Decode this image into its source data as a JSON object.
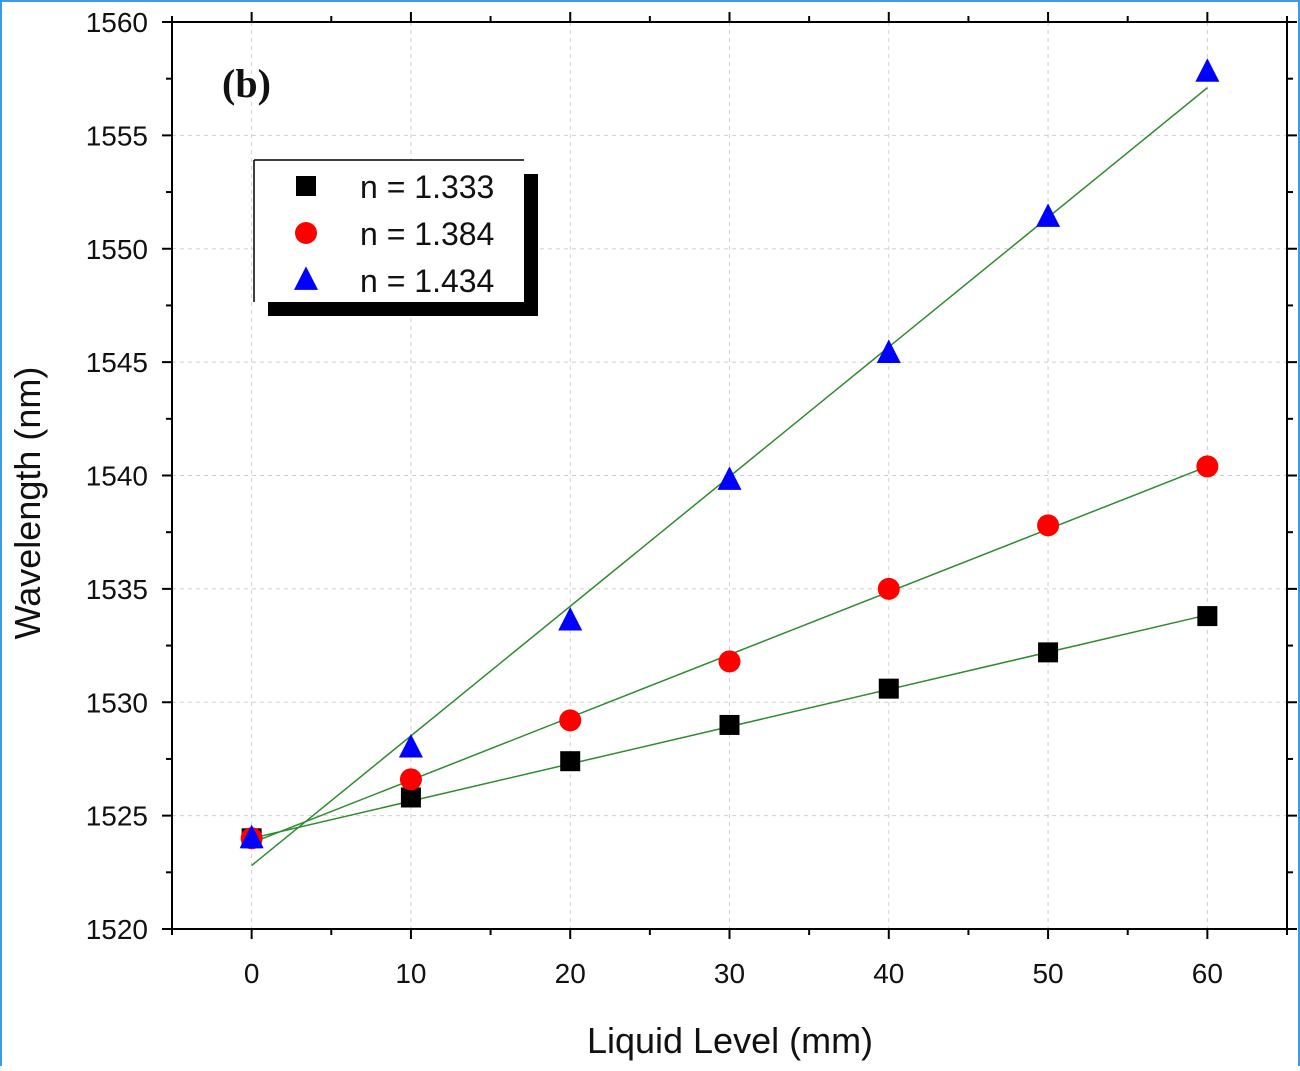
{
  "chart_data": {
    "type": "scatter",
    "panel_label": "(b)",
    "xlabel": "Liquid Level (mm)",
    "ylabel": "Wavelength (nm)",
    "xlim": [
      -5,
      65
    ],
    "ylim": [
      1520,
      1560
    ],
    "xticks": [
      0,
      10,
      20,
      30,
      40,
      50,
      60
    ],
    "yticks": [
      1520,
      1525,
      1530,
      1535,
      1540,
      1545,
      1550,
      1555,
      1560
    ],
    "grid": true,
    "legend_position": "upper-left",
    "fit_color": "#2e8b2e",
    "series": [
      {
        "name": "n = 1.333",
        "marker": "square",
        "color": "#000000",
        "x": [
          0,
          10,
          20,
          30,
          40,
          50,
          60
        ],
        "y": [
          1524.0,
          1525.8,
          1527.4,
          1529.0,
          1530.6,
          1532.2,
          1533.8
        ],
        "fit": [
          1524.0,
          1533.85
        ]
      },
      {
        "name": "n = 1.384",
        "marker": "circle",
        "color": "#ff0000",
        "x": [
          0,
          10,
          20,
          30,
          40,
          50,
          60
        ],
        "y": [
          1524.0,
          1526.6,
          1529.2,
          1531.8,
          1535.0,
          1537.8,
          1540.4
        ],
        "fit": [
          1523.8,
          1540.4
        ]
      },
      {
        "name": "n = 1.434",
        "marker": "triangle",
        "color": "#0000ff",
        "x": [
          0,
          10,
          20,
          30,
          40,
          50,
          60
        ],
        "y": [
          1524.0,
          1528.0,
          1533.6,
          1539.8,
          1545.4,
          1551.4,
          1557.8
        ],
        "fit": [
          1522.8,
          1557.1
        ]
      }
    ]
  }
}
